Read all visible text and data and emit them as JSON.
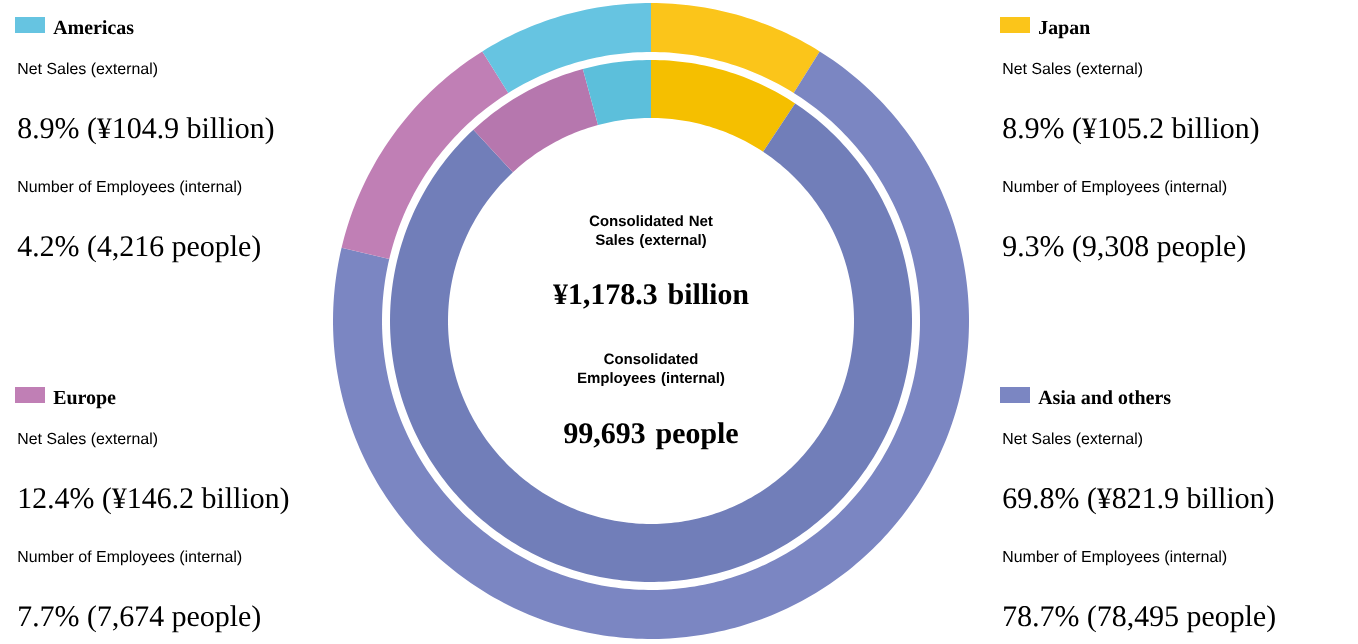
{
  "chart_data": {
    "type": "donut",
    "legend": "top left",
    "categories": [
      "Japan",
      "Asia and others",
      "Europe",
      "Americas"
    ],
    "series": [
      {
        "name": "Net Sales (external)",
        "values": [
          8.9,
          69.8,
          12.4,
          8.9
        ],
        "colors": [
          "#fbc51a",
          "#7b86c2",
          "#c07fb5",
          "#66c4e1"
        ]
      },
      {
        "name": "Number of Employees (internal)",
        "values": [
          9.3,
          78.7,
          7.7,
          4.2
        ],
        "colors": [
          "#f5bf00",
          "#717eb9",
          "#b677ae",
          "#5cbfdb"
        ]
      }
    ],
    "annotations": [
      "Consolidated Net Sales (external)",
      "¥1,178.3 billion",
      "Consolidated Employees (internal)",
      "99,693 people",
      "8.9% (¥105.2 billion)",
      "9.3% (9,308 people)",
      "69.8% (¥821.9 billion)",
      "78.7% (78,495 people)",
      "12.4% (¥146.2 billion)",
      "7.7% (7,674 people)",
      "8.9% (¥104.9 billion)",
      "4.2% (4,216 people)"
    ]
  }
}
